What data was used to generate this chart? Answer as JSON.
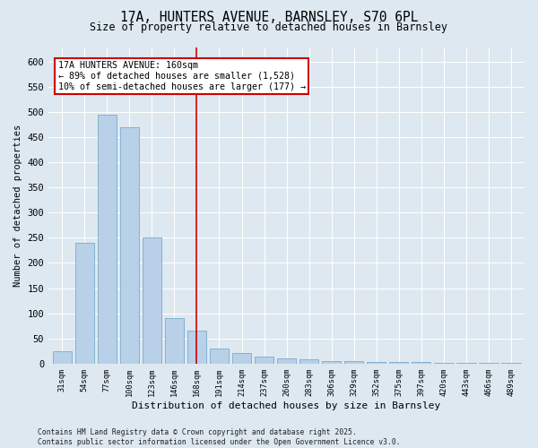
{
  "title_line1": "17A, HUNTERS AVENUE, BARNSLEY, S70 6PL",
  "title_line2": "Size of property relative to detached houses in Barnsley",
  "xlabel": "Distribution of detached houses by size in Barnsley",
  "ylabel": "Number of detached properties",
  "categories": [
    "31sqm",
    "54sqm",
    "77sqm",
    "100sqm",
    "123sqm",
    "146sqm",
    "168sqm",
    "191sqm",
    "214sqm",
    "237sqm",
    "260sqm",
    "283sqm",
    "306sqm",
    "329sqm",
    "352sqm",
    "375sqm",
    "397sqm",
    "420sqm",
    "443sqm",
    "466sqm",
    "489sqm"
  ],
  "values": [
    25,
    240,
    495,
    470,
    250,
    90,
    65,
    30,
    20,
    13,
    10,
    8,
    5,
    5,
    3,
    2,
    2,
    1,
    1,
    1,
    1
  ],
  "bar_color": "#b8d0e8",
  "bar_edge_color": "#7aaacc",
  "red_line_index": 6,
  "red_line_color": "#cc0000",
  "annotation_text": "17A HUNTERS AVENUE: 160sqm\n← 89% of detached houses are smaller (1,528)\n10% of semi-detached houses are larger (177) →",
  "annotation_box_color": "#ffffff",
  "annotation_box_edge": "#cc0000",
  "ylim": [
    0,
    630
  ],
  "yticks": [
    0,
    50,
    100,
    150,
    200,
    250,
    300,
    350,
    400,
    450,
    500,
    550,
    600
  ],
  "bg_color": "#dde8f0",
  "grid_color": "#ffffff",
  "footer": "Contains HM Land Registry data © Crown copyright and database right 2025.\nContains public sector information licensed under the Open Government Licence v3.0.",
  "figsize": [
    6.0,
    5.0
  ],
  "dpi": 100
}
